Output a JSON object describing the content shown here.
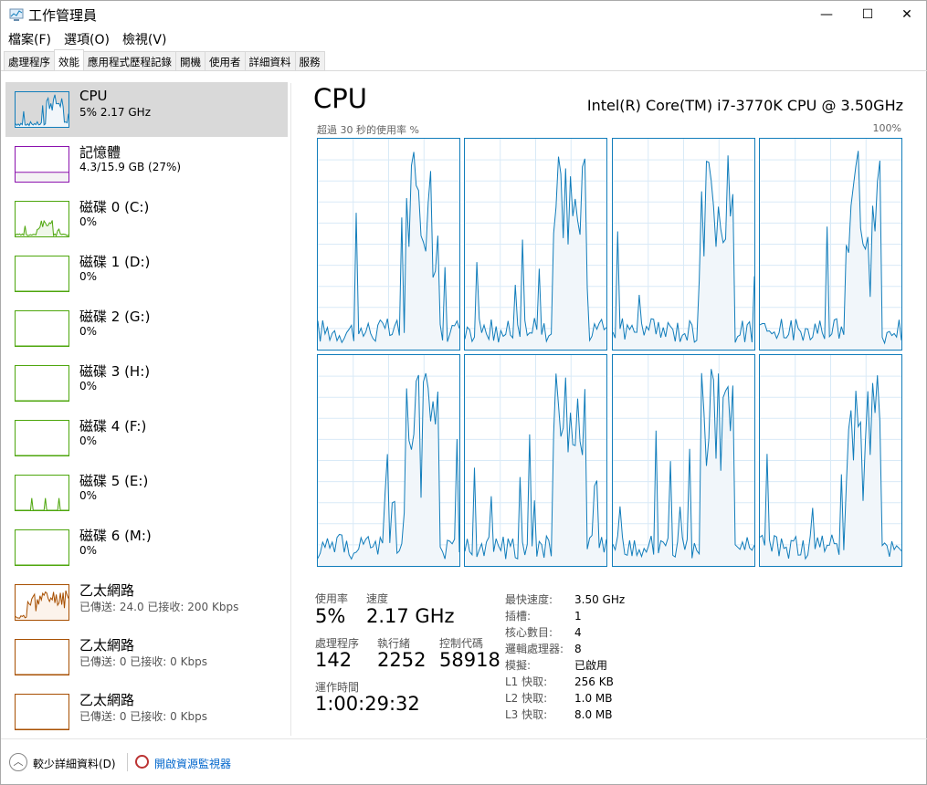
{
  "window": {
    "title": "工作管理員",
    "minimize": "—",
    "maximize": "☐",
    "close": "✕"
  },
  "menu": [
    "檔案(F)",
    "選項(O)",
    "檢視(V)"
  ],
  "tabs": [
    "處理程序",
    "效能",
    "應用程式歷程記錄",
    "開機",
    "使用者",
    "詳細資料",
    "服務"
  ],
  "active_tab": 1,
  "sidebar": [
    {
      "name": "CPU",
      "sub": "5%  2.17 GHz",
      "color": "#117dbb",
      "selected": true
    },
    {
      "name": "記憶體",
      "sub": "4.3/15.9 GB (27%)",
      "color": "#8b12ae"
    },
    {
      "name": "磁碟 0 (C:)",
      "sub": "0%",
      "color": "#4da60c"
    },
    {
      "name": "磁碟 1 (D:)",
      "sub": "0%",
      "color": "#4da60c"
    },
    {
      "name": "磁碟 2 (G:)",
      "sub": "0%",
      "color": "#4da60c"
    },
    {
      "name": "磁碟 3 (H:)",
      "sub": "0%",
      "color": "#4da60c"
    },
    {
      "name": "磁碟 4 (F:)",
      "sub": "0%",
      "color": "#4da60c"
    },
    {
      "name": "磁碟 5 (E:)",
      "sub": "0%",
      "color": "#4da60c"
    },
    {
      "name": "磁碟 6 (M:)",
      "sub": "0%",
      "color": "#4da60c"
    },
    {
      "name": "乙太網路",
      "sub": "已傳送: 24.0 已接收: 200 Kbps",
      "color": "#a74f01"
    },
    {
      "name": "乙太網路",
      "sub": "已傳送: 0 已接收: 0 Kbps",
      "color": "#a74f01"
    },
    {
      "name": "乙太網路",
      "sub": "已傳送: 0 已接收: 0 Kbps",
      "color": "#a74f01"
    }
  ],
  "main": {
    "title": "CPU",
    "model": "Intel(R) Core(TM) i7-3770K CPU @ 3.50GHz",
    "graph_label": "超過 30 秒的使用率 %",
    "graph_max": "100%",
    "logical_processor_graphs": 8
  },
  "stats": {
    "util_label": "使用率",
    "util": "5%",
    "speed_label": "速度",
    "speed": "2.17 GHz",
    "proc_label": "處理程序",
    "proc": "142",
    "threads_label": "執行緒",
    "threads": "2252",
    "handles_label": "控制代碼",
    "handles": "58918",
    "uptime_label": "運作時間",
    "uptime": "1:00:29:32"
  },
  "specs": [
    {
      "k": "最快速度:",
      "v": "3.50 GHz"
    },
    {
      "k": "插槽:",
      "v": "1"
    },
    {
      "k": "核心數目:",
      "v": "4"
    },
    {
      "k": "邏輯處理器:",
      "v": "8"
    },
    {
      "k": "模擬:",
      "v": "已啟用"
    },
    {
      "k": "L1 快取:",
      "v": "256 KB"
    },
    {
      "k": "L2 快取:",
      "v": "1.0 MB"
    },
    {
      "k": "L3 快取:",
      "v": "8.0 MB"
    }
  ],
  "footer": {
    "less": "較少詳細資料(D)",
    "monitor": "開啟資源監視器"
  }
}
